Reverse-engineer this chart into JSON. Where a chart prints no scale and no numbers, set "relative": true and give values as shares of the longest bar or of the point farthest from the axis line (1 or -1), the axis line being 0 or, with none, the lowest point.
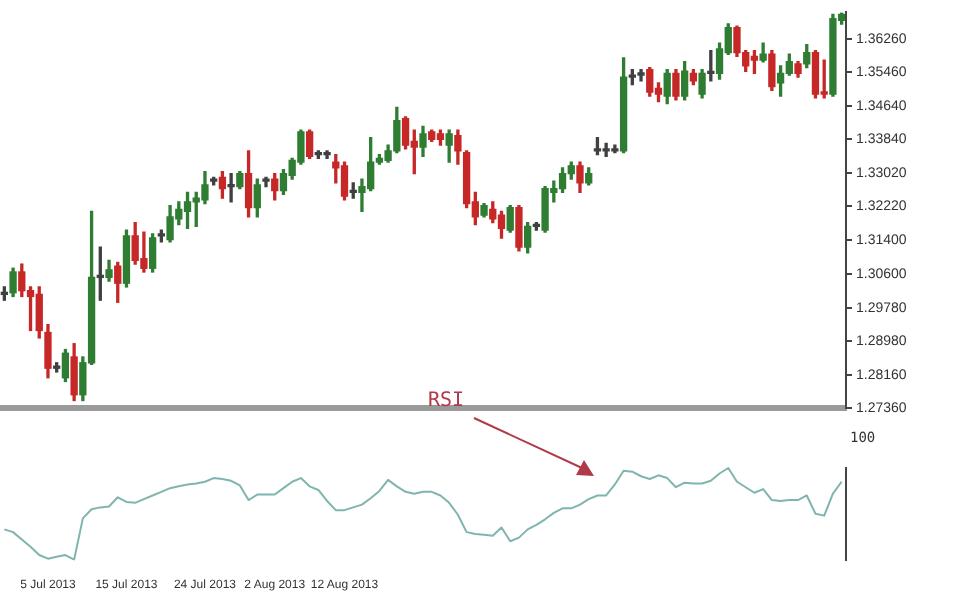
{
  "chart_data": [
    {
      "type": "candlestick",
      "categories": [
        null,
        null,
        null,
        null,
        null,
        null,
        null,
        null,
        null,
        null,
        null,
        null,
        null,
        null,
        null,
        null,
        null,
        null,
        null,
        null,
        null,
        null,
        null,
        null,
        null,
        null,
        null,
        null,
        null,
        null,
        null,
        null,
        null,
        null,
        null,
        null,
        null,
        null,
        null,
        null,
        null,
        null,
        null,
        null,
        null,
        null,
        null,
        null,
        null,
        null,
        null,
        null,
        null,
        null,
        null,
        null,
        null,
        null,
        null,
        null,
        null,
        null,
        null,
        null,
        null,
        null,
        null,
        null,
        null,
        null,
        null,
        null,
        null,
        null,
        null,
        null,
        null,
        null,
        null,
        null,
        null,
        null,
        null,
        null,
        null,
        null,
        null,
        null,
        null,
        null,
        null,
        null,
        null,
        null,
        null,
        null,
        null
      ],
      "ohlc": [
        [
          1.301,
          1.3028,
          1.2996,
          1.301
        ],
        [
          1.3014,
          1.3073,
          1.3005,
          1.3064
        ],
        [
          1.3064,
          1.3083,
          1.3005,
          1.3019
        ],
        [
          1.3019,
          1.3028,
          1.2923,
          1.3005
        ],
        [
          1.301,
          1.3028,
          1.2905,
          1.2923
        ],
        [
          1.2918,
          1.2937,
          1.2809,
          1.2832
        ],
        [
          1.2832,
          1.2845,
          1.2823,
          1.2832
        ],
        [
          1.2809,
          1.2877,
          1.28,
          1.2868
        ],
        [
          1.2859,
          1.2891,
          1.2754,
          1.2768
        ],
        [
          1.2768,
          1.2859,
          1.2754,
          1.2845
        ],
        [
          1.2845,
          1.321,
          1.2841,
          1.3051
        ],
        [
          1.3051,
          1.3124,
          1.2996,
          1.3051
        ],
        [
          1.3051,
          1.3092,
          1.3042,
          1.3069
        ],
        [
          1.3078,
          1.3087,
          1.2991,
          1.3037
        ],
        [
          1.3037,
          1.3165,
          1.3028,
          1.3151
        ],
        [
          1.3151,
          1.3183,
          1.3083,
          1.3092
        ],
        [
          1.3096,
          1.316,
          1.3064,
          1.3073
        ],
        [
          1.3073,
          1.3156,
          1.3064,
          1.3146
        ],
        [
          1.3151,
          1.3165,
          1.3137,
          1.3151
        ],
        [
          1.3142,
          1.3224,
          1.3137,
          1.3197
        ],
        [
          1.3192,
          1.3233,
          1.3178,
          1.3215
        ],
        [
          1.321,
          1.3256,
          1.3169,
          1.3233
        ],
        [
          1.3233,
          1.3256,
          1.3174,
          1.3242
        ],
        [
          1.3238,
          1.3306,
          1.3229,
          1.3274
        ],
        [
          1.3283,
          1.3292,
          1.3274,
          1.3283
        ],
        [
          1.3292,
          1.3306,
          1.3242,
          1.3265
        ],
        [
          1.327,
          1.3301,
          1.3233,
          1.327
        ],
        [
          1.327,
          1.3306,
          1.3265,
          1.3301
        ],
        [
          1.3301,
          1.3356,
          1.3197,
          1.3219
        ],
        [
          1.3219,
          1.3288,
          1.3197,
          1.3274
        ],
        [
          1.3283,
          1.3292,
          1.327,
          1.3283
        ],
        [
          1.3288,
          1.3301,
          1.3238,
          1.326
        ],
        [
          1.326,
          1.3311,
          1.3251,
          1.3301
        ],
        [
          1.3297,
          1.3338,
          1.3288,
          1.3333
        ],
        [
          1.3329,
          1.3406,
          1.3324,
          1.3402
        ],
        [
          1.3402,
          1.3406,
          1.3338,
          1.3343
        ],
        [
          1.3347,
          1.3356,
          1.3338,
          1.3347
        ],
        [
          1.3347,
          1.3356,
          1.3338,
          1.3347
        ],
        [
          1.3329,
          1.3347,
          1.3279,
          1.3315
        ],
        [
          1.332,
          1.3329,
          1.3238,
          1.3247
        ],
        [
          1.3256,
          1.3279,
          1.3242,
          1.3256
        ],
        [
          1.3256,
          1.3288,
          1.321,
          1.327
        ],
        [
          1.3265,
          1.3388,
          1.326,
          1.3329
        ],
        [
          1.3329,
          1.3347,
          1.3324,
          1.3338
        ],
        [
          1.3333,
          1.337,
          1.3329,
          1.3356
        ],
        [
          1.3356,
          1.3461,
          1.3352,
          1.3429
        ],
        [
          1.3434,
          1.3438,
          1.3361,
          1.337
        ],
        [
          1.3379,
          1.3406,
          1.3301,
          1.3365
        ],
        [
          1.3365,
          1.3415,
          1.3343,
          1.3397
        ],
        [
          1.3402,
          1.3406,
          1.3379,
          1.3384
        ],
        [
          1.3397,
          1.3406,
          1.337,
          1.3384
        ],
        [
          1.337,
          1.3406,
          1.3329,
          1.3397
        ],
        [
          1.3393,
          1.3406,
          1.3324,
          1.3356
        ],
        [
          1.3352,
          1.3356,
          1.3219,
          1.3229
        ],
        [
          1.3233,
          1.3256,
          1.3178,
          1.3197
        ],
        [
          1.3201,
          1.3229,
          1.3197,
          1.3224
        ],
        [
          1.3215,
          1.3233,
          1.3183,
          1.3192
        ],
        [
          1.3201,
          1.321,
          1.3146,
          1.3169
        ],
        [
          1.3165,
          1.3224,
          1.316,
          1.3219
        ],
        [
          1.3219,
          1.3224,
          1.3115,
          1.3124
        ],
        [
          1.3124,
          1.3183,
          1.311,
          1.3174
        ],
        [
          1.3174,
          1.3183,
          1.3165,
          1.3174
        ],
        [
          1.3165,
          1.327,
          1.316,
          1.3265
        ],
        [
          1.3256,
          1.3283,
          1.3233,
          1.3265
        ],
        [
          1.3265,
          1.3315,
          1.3256,
          1.3301
        ],
        [
          1.3301,
          1.3329,
          1.3288,
          1.332
        ],
        [
          1.332,
          1.3329,
          1.3256,
          1.3279
        ],
        [
          1.3279,
          1.3315,
          1.3274,
          1.3301
        ],
        [
          1.3356,
          1.3388,
          1.3347,
          1.3356
        ],
        [
          1.3356,
          1.3374,
          1.3343,
          1.3356
        ],
        [
          1.3356,
          1.337,
          1.3352,
          1.3356
        ],
        [
          1.3356,
          1.358,
          1.3352,
          1.3534
        ],
        [
          1.3534,
          1.3552,
          1.3516,
          1.3534
        ],
        [
          1.3539,
          1.3552,
          1.3525,
          1.3539
        ],
        [
          1.3552,
          1.3557,
          1.3488,
          1.3498
        ],
        [
          1.3507,
          1.352,
          1.3475,
          1.3493
        ],
        [
          1.3488,
          1.3552,
          1.347,
          1.3543
        ],
        [
          1.3543,
          1.3552,
          1.3479,
          1.3488
        ],
        [
          1.3488,
          1.3571,
          1.3479,
          1.3548
        ],
        [
          1.3543,
          1.3552,
          1.3516,
          1.3525
        ],
        [
          1.3493,
          1.3552,
          1.3484,
          1.3543
        ],
        [
          1.3543,
          1.3598,
          1.3525,
          1.3543
        ],
        [
          1.3543,
          1.3616,
          1.3529,
          1.3602
        ],
        [
          1.3593,
          1.3662,
          1.3589,
          1.3653
        ],
        [
          1.3653,
          1.3657,
          1.3584,
          1.3593
        ],
        [
          1.3593,
          1.3598,
          1.3548,
          1.3561
        ],
        [
          1.3584,
          1.3598,
          1.3543,
          1.3575
        ],
        [
          1.3575,
          1.3616,
          1.3571,
          1.3589
        ],
        [
          1.3589,
          1.3598,
          1.3502,
          1.3511
        ],
        [
          1.352,
          1.3561,
          1.3488,
          1.3543
        ],
        [
          1.3543,
          1.3589,
          1.3539,
          1.3571
        ],
        [
          1.3566,
          1.3571,
          1.3534,
          1.3543
        ],
        [
          1.3566,
          1.3612,
          1.3557,
          1.3593
        ],
        [
          1.3593,
          1.3598,
          1.3484,
          1.3493
        ],
        [
          1.3498,
          1.3575,
          1.3484,
          1.3493
        ],
        [
          1.3493,
          1.3685,
          1.3488,
          1.3675
        ],
        [
          1.3671,
          1.3689,
          1.3662,
          1.3685
        ]
      ],
      "colors": [
        "#404040",
        "#2e7d32",
        "#c62828",
        "#c62828",
        "#c62828",
        "#c62828",
        "#404040",
        "#2e7d32",
        "#c62828",
        "#2e7d32",
        "#2e7d32",
        "#404040",
        "#2e7d32",
        "#c62828",
        "#2e7d32",
        "#c62828",
        "#c62828",
        "#2e7d32",
        "#404040",
        "#2e7d32",
        "#2e7d32",
        "#2e7d32",
        "#2e7d32",
        "#2e7d32",
        "#404040",
        "#c62828",
        "#404040",
        "#2e7d32",
        "#c62828",
        "#2e7d32",
        "#404040",
        "#c62828",
        "#2e7d32",
        "#2e7d32",
        "#2e7d32",
        "#c62828",
        "#404040",
        "#404040",
        "#c62828",
        "#c62828",
        "#404040",
        "#2e7d32",
        "#2e7d32",
        "#2e7d32",
        "#2e7d32",
        "#2e7d32",
        "#c62828",
        "#c62828",
        "#2e7d32",
        "#c62828",
        "#c62828",
        "#2e7d32",
        "#c62828",
        "#c62828",
        "#c62828",
        "#2e7d32",
        "#c62828",
        "#c62828",
        "#2e7d32",
        "#c62828",
        "#2e7d32",
        "#404040",
        "#2e7d32",
        "#2e7d32",
        "#2e7d32",
        "#2e7d32",
        "#c62828",
        "#2e7d32",
        "#404040",
        "#404040",
        "#404040",
        "#2e7d32",
        "#404040",
        "#404040",
        "#c62828",
        "#c62828",
        "#2e7d32",
        "#c62828",
        "#2e7d32",
        "#c62828",
        "#2e7d32",
        "#404040",
        "#2e7d32",
        "#2e7d32",
        "#c62828",
        "#c62828",
        "#c62828",
        "#2e7d32",
        "#c62828",
        "#2e7d32",
        "#2e7d32",
        "#c62828",
        "#2e7d32",
        "#c62828",
        "#c62828",
        "#2e7d32",
        "#2e7d32"
      ],
      "ylim": [
        1.2736,
        1.369
      ],
      "yticks": [
        {
          "value": 1.2736,
          "label": "1.27360"
        },
        {
          "value": 1.2816,
          "label": "1.28160"
        },
        {
          "value": 1.2898,
          "label": "1.28980"
        },
        {
          "value": 1.2978,
          "label": "1.29780"
        },
        {
          "value": 1.306,
          "label": "1.30600"
        },
        {
          "value": 1.314,
          "label": "1.31400"
        },
        {
          "value": 1.3222,
          "label": "1.32220"
        },
        {
          "value": 1.3302,
          "label": "1.33020"
        },
        {
          "value": 1.3384,
          "label": "1.33840"
        },
        {
          "value": 1.3464,
          "label": "1.34640"
        },
        {
          "value": 1.3546,
          "label": "1.35460"
        },
        {
          "value": 1.3626,
          "label": "1.36260"
        }
      ],
      "tick_labels": "y"
    },
    {
      "type": "line",
      "categories": [
        null,
        null,
        null,
        null,
        null,
        "5 Jul 2013",
        null,
        null,
        null,
        null,
        null,
        null,
        null,
        null,
        "15 Jul 2013",
        null,
        null,
        null,
        null,
        null,
        null,
        null,
        null,
        "24 Jul 2013",
        null,
        null,
        null,
        null,
        null,
        null,
        null,
        "2 Aug 2013",
        null,
        null,
        null,
        null,
        null,
        null,
        null,
        "12 Aug 2013",
        null,
        null,
        null,
        null,
        null,
        null,
        null,
        null,
        null,
        null,
        null,
        null,
        null,
        null,
        null,
        null,
        null,
        null,
        null,
        null,
        null,
        null,
        null,
        null,
        null,
        null,
        null,
        null,
        null,
        null,
        null,
        null,
        null,
        null,
        null,
        null,
        null,
        null,
        null,
        null,
        null,
        null,
        null,
        null,
        null,
        null,
        null,
        null,
        null,
        null,
        null,
        null,
        null,
        null,
        null,
        null,
        null
      ],
      "relative": true,
      "tick_labels": "x",
      "annotations": [
        "RSI",
        "100"
      ],
      "series": [
        {
          "color": "#7fb5ae",
          "values": [
            0.33,
            0.3,
            0.22,
            0.14,
            0.05,
            0.01,
            0.03,
            0.05,
            0,
            0.45,
            0.55,
            0.57,
            0.58,
            0.68,
            0.63,
            0.62,
            0.66,
            0.7,
            0.74,
            0.78,
            0.8,
            0.82,
            0.83,
            0.85,
            0.89,
            0.88,
            0.86,
            0.81,
            0.65,
            0.71,
            0.71,
            0.71,
            0.78,
            0.85,
            0.89,
            0.8,
            0.76,
            0.64,
            0.54,
            0.54,
            0.57,
            0.6,
            0.67,
            0.75,
            0.87,
            0.8,
            0.74,
            0.72,
            0.74,
            0.74,
            0.7,
            0.62,
            0.49,
            0.3,
            0.28,
            0.27,
            0.26,
            0.35,
            0.2,
            0.24,
            0.33,
            0.38,
            0.44,
            0.51,
            0.56,
            0.56,
            0.6,
            0.66,
            0.7,
            0.7,
            0.82,
            0.97,
            0.96,
            0.91,
            0.88,
            0.92,
            0.89,
            0.79,
            0.84,
            0.83,
            0.83,
            0.86,
            0.94,
            1.0,
            0.85,
            0.79,
            0.73,
            0.77,
            0.65,
            0.64,
            0.65,
            0.65,
            0.7,
            0.5,
            0.48,
            0.72,
            0.85
          ]
        }
      ]
    }
  ]
}
